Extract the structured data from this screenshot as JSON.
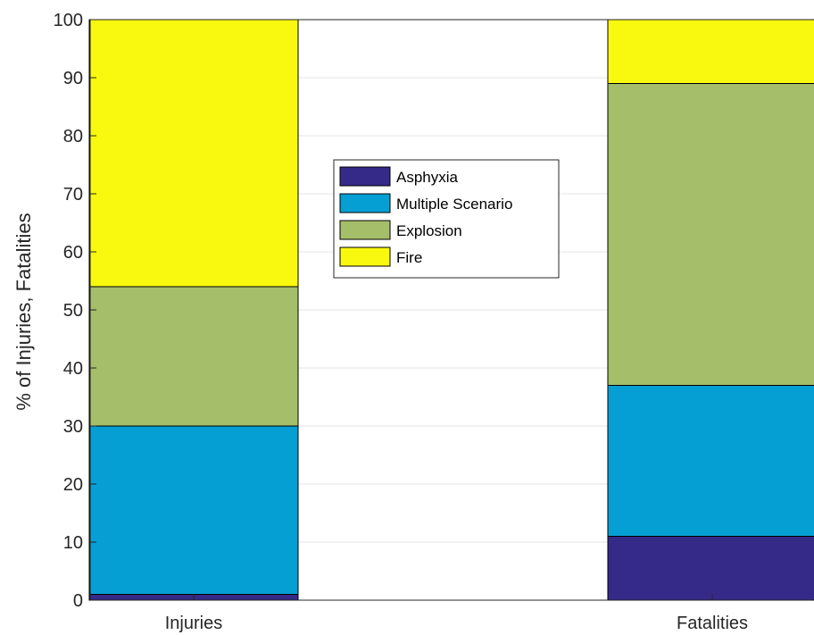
{
  "chart_data": {
    "type": "bar",
    "stacked": true,
    "categories": [
      "Injuries",
      "Fatalities"
    ],
    "series": [
      {
        "name": "Asphyxia",
        "values": [
          1,
          11
        ],
        "color": "#352a87"
      },
      {
        "name": "Multiple Scenario",
        "values": [
          29,
          26
        ],
        "color": "#069fd4"
      },
      {
        "name": "Explosion",
        "values": [
          24,
          52
        ],
        "color": "#a5be6a"
      },
      {
        "name": "Fire",
        "values": [
          46,
          11
        ],
        "color": "#f9f90f"
      }
    ],
    "ylabel": "% of Injuries, Fatalities",
    "xlabel": "",
    "ylim": [
      0,
      100
    ],
    "yticks": [
      0,
      10,
      20,
      30,
      40,
      50,
      60,
      70,
      80,
      90,
      100
    ],
    "grid": true,
    "legend_position": "upper-center"
  }
}
